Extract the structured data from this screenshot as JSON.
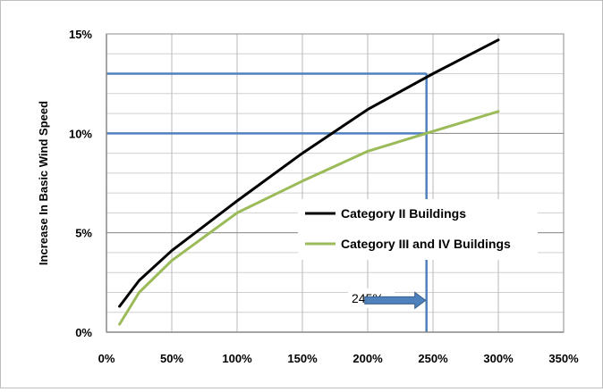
{
  "chart_data": {
    "type": "line",
    "xlabel": "",
    "ylabel": "Increase In Basic Wind Speed",
    "xlim": [
      0,
      350
    ],
    "ylim": [
      0,
      15
    ],
    "x_ticks": [
      {
        "value": 0,
        "label": "0%"
      },
      {
        "value": 50,
        "label": "50%"
      },
      {
        "value": 100,
        "label": "100%"
      },
      {
        "value": 150,
        "label": "150%"
      },
      {
        "value": 200,
        "label": "200%"
      },
      {
        "value": 250,
        "label": "250%"
      },
      {
        "value": 300,
        "label": "300%"
      },
      {
        "value": 350,
        "label": "350%"
      }
    ],
    "y_ticks": [
      {
        "value": 0,
        "label": "0%"
      },
      {
        "value": 5,
        "label": "5%"
      },
      {
        "value": 10,
        "label": "10%"
      },
      {
        "value": 15,
        "label": "15%"
      }
    ],
    "grid": true,
    "legend_position": "center-right",
    "series": [
      {
        "name": "Category II Buildings",
        "color": "#000000",
        "x": [
          10,
          25,
          50,
          100,
          150,
          200,
          250,
          300
        ],
        "y": [
          1.3,
          2.6,
          4.1,
          6.6,
          9.0,
          11.2,
          13.0,
          14.7
        ]
      },
      {
        "name": "Category III and IV Buildings",
        "color": "#9bbb59",
        "x": [
          10,
          25,
          50,
          100,
          150,
          200,
          250,
          300
        ],
        "y": [
          0.4,
          2.0,
          3.6,
          6.0,
          7.6,
          9.1,
          10.1,
          11.1
        ]
      }
    ],
    "annotations": {
      "reference_color": "#4f81bd",
      "vertical_x": 245,
      "horizontal_y": [
        13.0,
        10.0
      ],
      "arrow_label": "245%",
      "arrow_from_x": 195,
      "arrow_to_x": 245,
      "arrow_y": 1.6
    }
  }
}
